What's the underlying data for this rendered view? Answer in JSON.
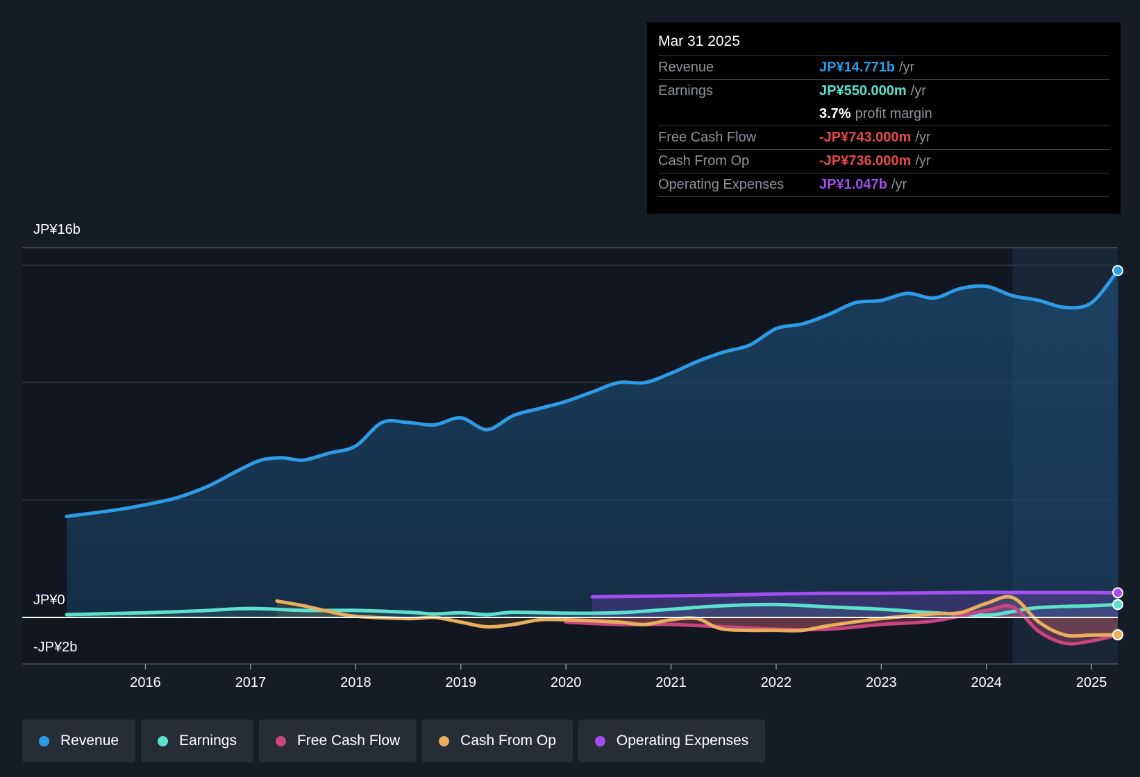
{
  "tooltip": {
    "date": "Mar 31 2025",
    "rows": [
      {
        "label": "Revenue",
        "value": "JP¥14.771b",
        "unit": "/yr",
        "color": "#2d9be6"
      },
      {
        "label": "Earnings",
        "value": "JP¥550.000m",
        "unit": "/yr",
        "color": "#5de0cf"
      },
      {
        "label": "",
        "value": "3.7%",
        "unit": "profit margin",
        "color": "#ffffff"
      },
      {
        "label": "Free Cash Flow",
        "value": "-JP¥743.000m",
        "unit": "/yr",
        "color": "#e84a4a"
      },
      {
        "label": "Cash From Op",
        "value": "-JP¥736.000m",
        "unit": "/yr",
        "color": "#e84a4a"
      },
      {
        "label": "Operating Expenses",
        "value": "JP¥1.047b",
        "unit": "/yr",
        "color": "#a24ef2"
      }
    ]
  },
  "legend": [
    {
      "label": "Revenue",
      "color": "#2d9be6"
    },
    {
      "label": "Earnings",
      "color": "#5de0cf"
    },
    {
      "label": "Free Cash Flow",
      "color": "#c8467f"
    },
    {
      "label": "Cash From Op",
      "color": "#e8ae5d"
    },
    {
      "label": "Operating Expenses",
      "color": "#a24ef2"
    }
  ],
  "chart_data": {
    "type": "area",
    "y_axis_labels": {
      "top": "JP¥16b",
      "zero": "JP¥0",
      "bottom": "-JP¥2b"
    },
    "ylim": [
      -2,
      16
    ],
    "y_unit": "JP¥ billions",
    "x_ticks": [
      "2016",
      "2017",
      "2018",
      "2019",
      "2020",
      "2021",
      "2022",
      "2023",
      "2024",
      "2025"
    ],
    "xlim": [
      2015.0,
      2025.25
    ],
    "forecast_start": 2024.25,
    "series": [
      {
        "name": "Revenue",
        "color": "#2d9be6",
        "points": [
          [
            2015.25,
            4.3
          ],
          [
            2015.75,
            4.6
          ],
          [
            2016.0,
            4.8
          ],
          [
            2016.3,
            5.1
          ],
          [
            2016.6,
            5.6
          ],
          [
            2016.9,
            6.3
          ],
          [
            2017.1,
            6.7
          ],
          [
            2017.3,
            6.8
          ],
          [
            2017.5,
            6.7
          ],
          [
            2017.75,
            7.0
          ],
          [
            2018.0,
            7.3
          ],
          [
            2018.25,
            8.3
          ],
          [
            2018.5,
            8.3
          ],
          [
            2018.75,
            8.2
          ],
          [
            2019.0,
            8.5
          ],
          [
            2019.25,
            8.0
          ],
          [
            2019.5,
            8.6
          ],
          [
            2019.75,
            8.9
          ],
          [
            2020.0,
            9.2
          ],
          [
            2020.25,
            9.6
          ],
          [
            2020.5,
            10.0
          ],
          [
            2020.75,
            10.0
          ],
          [
            2021.0,
            10.4
          ],
          [
            2021.25,
            10.9
          ],
          [
            2021.5,
            11.3
          ],
          [
            2021.75,
            11.6
          ],
          [
            2022.0,
            12.3
          ],
          [
            2022.25,
            12.5
          ],
          [
            2022.5,
            12.9
          ],
          [
            2022.75,
            13.4
          ],
          [
            2023.0,
            13.5
          ],
          [
            2023.25,
            13.8
          ],
          [
            2023.5,
            13.6
          ],
          [
            2023.75,
            14.0
          ],
          [
            2024.0,
            14.1
          ],
          [
            2024.25,
            13.7
          ],
          [
            2024.5,
            13.5
          ],
          [
            2024.75,
            13.2
          ],
          [
            2025.0,
            13.4
          ],
          [
            2025.25,
            14.771
          ]
        ]
      },
      {
        "name": "Earnings",
        "color": "#5de0cf",
        "points": [
          [
            2015.25,
            0.12
          ],
          [
            2016.0,
            0.2
          ],
          [
            2016.5,
            0.28
          ],
          [
            2017.0,
            0.38
          ],
          [
            2017.5,
            0.3
          ],
          [
            2018.0,
            0.3
          ],
          [
            2018.5,
            0.22
          ],
          [
            2018.75,
            0.15
          ],
          [
            2019.0,
            0.2
          ],
          [
            2019.25,
            0.12
          ],
          [
            2019.5,
            0.22
          ],
          [
            2020.0,
            0.18
          ],
          [
            2020.5,
            0.2
          ],
          [
            2021.0,
            0.35
          ],
          [
            2021.5,
            0.5
          ],
          [
            2022.0,
            0.55
          ],
          [
            2022.5,
            0.45
          ],
          [
            2023.0,
            0.35
          ],
          [
            2023.5,
            0.2
          ],
          [
            2024.0,
            0.1
          ],
          [
            2024.25,
            0.25
          ],
          [
            2024.5,
            0.42
          ],
          [
            2025.0,
            0.5
          ],
          [
            2025.25,
            0.55
          ]
        ]
      },
      {
        "name": "Free Cash Flow",
        "color": "#c8467f",
        "points": [
          [
            2020.0,
            -0.2
          ],
          [
            2020.5,
            -0.3
          ],
          [
            2021.0,
            -0.3
          ],
          [
            2021.5,
            -0.4
          ],
          [
            2022.0,
            -0.5
          ],
          [
            2022.5,
            -0.5
          ],
          [
            2023.0,
            -0.3
          ],
          [
            2023.5,
            -0.15
          ],
          [
            2024.0,
            0.3
          ],
          [
            2024.25,
            0.45
          ],
          [
            2024.5,
            -0.6
          ],
          [
            2024.75,
            -1.1
          ],
          [
            2025.0,
            -1.0
          ],
          [
            2025.25,
            -0.743
          ]
        ]
      },
      {
        "name": "Cash From Op",
        "color": "#e8ae5d",
        "points": [
          [
            2017.25,
            0.7
          ],
          [
            2017.5,
            0.5
          ],
          [
            2017.75,
            0.25
          ],
          [
            2018.0,
            0.05
          ],
          [
            2018.5,
            -0.05
          ],
          [
            2018.75,
            0.0
          ],
          [
            2019.0,
            -0.2
          ],
          [
            2019.25,
            -0.4
          ],
          [
            2019.5,
            -0.3
          ],
          [
            2019.75,
            -0.1
          ],
          [
            2020.0,
            -0.1
          ],
          [
            2020.5,
            -0.2
          ],
          [
            2020.75,
            -0.3
          ],
          [
            2021.0,
            -0.1
          ],
          [
            2021.25,
            -0.05
          ],
          [
            2021.5,
            -0.5
          ],
          [
            2022.0,
            -0.55
          ],
          [
            2022.25,
            -0.55
          ],
          [
            2022.5,
            -0.35
          ],
          [
            2023.0,
            -0.05
          ],
          [
            2023.5,
            0.15
          ],
          [
            2023.75,
            0.2
          ],
          [
            2024.0,
            0.6
          ],
          [
            2024.25,
            0.85
          ],
          [
            2024.5,
            -0.2
          ],
          [
            2024.75,
            -0.75
          ],
          [
            2025.0,
            -0.75
          ],
          [
            2025.25,
            -0.736
          ]
        ]
      },
      {
        "name": "Operating Expenses",
        "color": "#a24ef2",
        "points": [
          [
            2020.25,
            0.88
          ],
          [
            2021.0,
            0.92
          ],
          [
            2021.5,
            0.95
          ],
          [
            2022.0,
            1.0
          ],
          [
            2022.5,
            1.03
          ],
          [
            2023.0,
            1.03
          ],
          [
            2023.5,
            1.05
          ],
          [
            2024.0,
            1.07
          ],
          [
            2024.5,
            1.06
          ],
          [
            2025.0,
            1.06
          ],
          [
            2025.25,
            1.047
          ]
        ]
      }
    ]
  }
}
